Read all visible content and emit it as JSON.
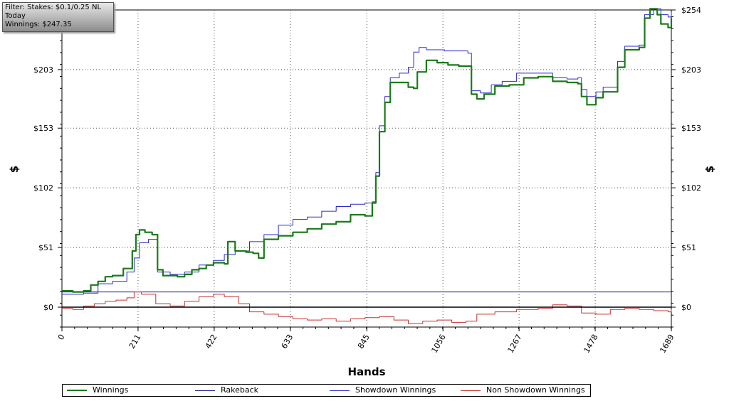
{
  "filter_box": {
    "line1": "Filter: Stakes: $0.1/0.25 NL",
    "line2": "Today",
    "line3": "Winnings: $247.35"
  },
  "colors": {
    "winnings": "#1a7a1a",
    "rakeback": "#1c1c8c",
    "showdown": "#2a2acc",
    "non_showdown": "#c83030"
  },
  "chart_data": {
    "type": "line",
    "xlabel": "Hands",
    "ylabel": "$",
    "xlim": [
      0,
      1689
    ],
    "ylim": [
      -17,
      254
    ],
    "x_ticks": [
      {
        "v": 0,
        "label": "0"
      },
      {
        "v": 211,
        "label": "211"
      },
      {
        "v": 422,
        "label": "422"
      },
      {
        "v": 633,
        "label": "633"
      },
      {
        "v": 845,
        "label": "845"
      },
      {
        "v": 1056,
        "label": "1056"
      },
      {
        "v": 1267,
        "label": "1267"
      },
      {
        "v": 1478,
        "label": "1478"
      },
      {
        "v": 1689,
        "label": "1689"
      }
    ],
    "y_ticks": [
      {
        "v": 0,
        "label": "$0"
      },
      {
        "v": 51,
        "label": "$51"
      },
      {
        "v": 102,
        "label": "$102"
      },
      {
        "v": 153,
        "label": "$153"
      },
      {
        "v": 203,
        "label": "$203"
      },
      {
        "v": 254,
        "label": "$254"
      }
    ],
    "grid": true,
    "legend_position": "bottom",
    "series": [
      {
        "name": "Winnings",
        "color": "#1a7a1a",
        "width": 2.2,
        "points": [
          [
            0,
            14
          ],
          [
            30,
            13
          ],
          [
            60,
            14
          ],
          [
            80,
            19
          ],
          [
            100,
            22
          ],
          [
            120,
            26
          ],
          [
            140,
            27
          ],
          [
            170,
            33
          ],
          [
            195,
            48
          ],
          [
            205,
            62
          ],
          [
            215,
            66
          ],
          [
            230,
            64
          ],
          [
            250,
            62
          ],
          [
            265,
            32
          ],
          [
            280,
            27
          ],
          [
            320,
            26
          ],
          [
            340,
            28
          ],
          [
            360,
            32
          ],
          [
            380,
            33
          ],
          [
            400,
            36
          ],
          [
            420,
            38
          ],
          [
            450,
            37
          ],
          [
            460,
            56
          ],
          [
            480,
            48
          ],
          [
            510,
            47
          ],
          [
            530,
            46
          ],
          [
            545,
            42
          ],
          [
            560,
            58
          ],
          [
            600,
            61
          ],
          [
            640,
            64
          ],
          [
            680,
            67
          ],
          [
            720,
            71
          ],
          [
            760,
            73
          ],
          [
            800,
            79
          ],
          [
            840,
            78
          ],
          [
            860,
            89
          ],
          [
            870,
            112
          ],
          [
            880,
            150
          ],
          [
            895,
            175
          ],
          [
            910,
            192
          ],
          [
            935,
            192
          ],
          [
            960,
            188
          ],
          [
            975,
            187
          ],
          [
            985,
            201
          ],
          [
            1010,
            211
          ],
          [
            1040,
            209
          ],
          [
            1070,
            207
          ],
          [
            1100,
            206
          ],
          [
            1120,
            206
          ],
          [
            1135,
            182
          ],
          [
            1150,
            178
          ],
          [
            1170,
            182
          ],
          [
            1200,
            189
          ],
          [
            1240,
            190
          ],
          [
            1280,
            196
          ],
          [
            1320,
            197
          ],
          [
            1340,
            197
          ],
          [
            1360,
            193
          ],
          [
            1400,
            192
          ],
          [
            1430,
            191
          ],
          [
            1440,
            180
          ],
          [
            1455,
            173
          ],
          [
            1480,
            179
          ],
          [
            1500,
            184
          ],
          [
            1540,
            205
          ],
          [
            1560,
            220
          ],
          [
            1600,
            222
          ],
          [
            1615,
            247
          ],
          [
            1630,
            255
          ],
          [
            1650,
            250
          ],
          [
            1660,
            242
          ],
          [
            1680,
            239
          ],
          [
            1689,
            247
          ]
        ]
      },
      {
        "name": "Rakeback",
        "color": "#1c1c8c",
        "width": 1,
        "points": [
          [
            0,
            13
          ],
          [
            1689,
            13
          ]
        ]
      },
      {
        "name": "Showdown Winnings",
        "color": "#2a2acc",
        "width": 1,
        "points": [
          [
            0,
            11
          ],
          [
            60,
            12
          ],
          [
            100,
            20
          ],
          [
            140,
            22
          ],
          [
            180,
            30
          ],
          [
            200,
            42
          ],
          [
            215,
            55
          ],
          [
            240,
            58
          ],
          [
            265,
            30
          ],
          [
            300,
            28
          ],
          [
            340,
            30
          ],
          [
            380,
            36
          ],
          [
            420,
            40
          ],
          [
            450,
            45
          ],
          [
            480,
            48
          ],
          [
            520,
            56
          ],
          [
            560,
            62
          ],
          [
            600,
            70
          ],
          [
            640,
            75
          ],
          [
            680,
            77
          ],
          [
            720,
            82
          ],
          [
            760,
            86
          ],
          [
            800,
            88
          ],
          [
            840,
            89
          ],
          [
            860,
            90
          ],
          [
            870,
            115
          ],
          [
            880,
            155
          ],
          [
            895,
            180
          ],
          [
            910,
            196
          ],
          [
            935,
            200
          ],
          [
            960,
            205
          ],
          [
            975,
            218
          ],
          [
            990,
            222
          ],
          [
            1010,
            220
          ],
          [
            1060,
            219
          ],
          [
            1100,
            219
          ],
          [
            1125,
            217
          ],
          [
            1135,
            185
          ],
          [
            1160,
            183
          ],
          [
            1190,
            190
          ],
          [
            1220,
            193
          ],
          [
            1260,
            200
          ],
          [
            1300,
            200
          ],
          [
            1330,
            200
          ],
          [
            1360,
            196
          ],
          [
            1400,
            195
          ],
          [
            1430,
            196
          ],
          [
            1440,
            186
          ],
          [
            1455,
            180
          ],
          [
            1480,
            184
          ],
          [
            1500,
            188
          ],
          [
            1540,
            210
          ],
          [
            1560,
            223
          ],
          [
            1600,
            224
          ],
          [
            1615,
            250
          ],
          [
            1640,
            255
          ],
          [
            1660,
            250
          ],
          [
            1680,
            248
          ],
          [
            1689,
            252
          ]
        ]
      },
      {
        "name": "Non Showdown Winnings",
        "color": "#c83030",
        "width": 1,
        "points": [
          [
            0,
            -1
          ],
          [
            30,
            -2
          ],
          [
            60,
            1
          ],
          [
            90,
            3
          ],
          [
            120,
            5
          ],
          [
            150,
            6
          ],
          [
            180,
            8
          ],
          [
            200,
            13
          ],
          [
            220,
            11
          ],
          [
            260,
            3
          ],
          [
            300,
            1
          ],
          [
            340,
            5
          ],
          [
            380,
            9
          ],
          [
            420,
            11
          ],
          [
            450,
            9
          ],
          [
            490,
            3
          ],
          [
            520,
            -4
          ],
          [
            560,
            -6
          ],
          [
            600,
            -8
          ],
          [
            640,
            -10
          ],
          [
            680,
            -11
          ],
          [
            720,
            -10
          ],
          [
            760,
            -12
          ],
          [
            800,
            -10
          ],
          [
            840,
            -9
          ],
          [
            880,
            -8
          ],
          [
            920,
            -11
          ],
          [
            960,
            -14
          ],
          [
            1000,
            -12
          ],
          [
            1040,
            -11
          ],
          [
            1080,
            -13
          ],
          [
            1120,
            -12
          ],
          [
            1150,
            -6
          ],
          [
            1200,
            -4
          ],
          [
            1260,
            -2
          ],
          [
            1320,
            -1
          ],
          [
            1360,
            2
          ],
          [
            1400,
            1
          ],
          [
            1440,
            -5
          ],
          [
            1480,
            -6
          ],
          [
            1520,
            -2
          ],
          [
            1560,
            -1
          ],
          [
            1600,
            -2
          ],
          [
            1640,
            -3
          ],
          [
            1680,
            -4
          ],
          [
            1689,
            -2
          ]
        ]
      }
    ]
  },
  "legend": {
    "items": [
      {
        "label": "Winnings"
      },
      {
        "label": "Rakeback"
      },
      {
        "label": "Showdown Winnings"
      },
      {
        "label": "Non Showdown Winnings"
      }
    ]
  }
}
